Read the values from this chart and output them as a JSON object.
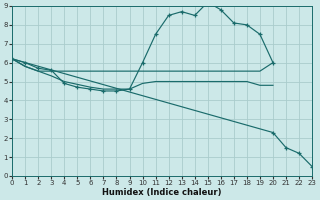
{
  "xlabel": "Humidex (Indice chaleur)",
  "bg_color": "#cce8e8",
  "grid_color": "#aacccc",
  "line_color": "#1a6b6b",
  "xlim": [
    0,
    23
  ],
  "ylim": [
    0,
    9
  ],
  "xticks": [
    0,
    1,
    2,
    3,
    4,
    5,
    6,
    7,
    8,
    9,
    10,
    11,
    12,
    13,
    14,
    15,
    16,
    17,
    18,
    19,
    20,
    21,
    22,
    23
  ],
  "yticks": [
    0,
    1,
    2,
    3,
    4,
    5,
    6,
    7,
    8,
    9
  ],
  "curves": [
    {
      "x": [
        0,
        1,
        2,
        3,
        4,
        5,
        6,
        7,
        8,
        9,
        10,
        11,
        12,
        13,
        14,
        15,
        16,
        17,
        18,
        19,
        20
      ],
      "y": [
        6.2,
        6.0,
        5.7,
        5.6,
        4.9,
        4.7,
        4.6,
        4.5,
        4.5,
        4.6,
        6.0,
        7.5,
        8.5,
        8.7,
        8.5,
        9.2,
        8.8,
        8.1,
        8.0,
        7.5,
        6.0
      ],
      "marker": true
    },
    {
      "x": [
        0,
        1,
        2,
        3,
        4,
        5,
        6,
        7,
        8,
        9,
        10,
        11,
        12,
        13,
        14,
        15,
        16,
        17,
        18,
        19,
        20
      ],
      "y": [
        6.2,
        5.8,
        5.55,
        5.55,
        5.55,
        5.55,
        5.55,
        5.55,
        5.55,
        5.55,
        5.55,
        5.55,
        5.55,
        5.55,
        5.55,
        5.55,
        5.55,
        5.55,
        5.55,
        5.55,
        6.0
      ],
      "marker": false
    },
    {
      "x": [
        0,
        1,
        2,
        3,
        4,
        5,
        6,
        7,
        8,
        9,
        10,
        11,
        12,
        13,
        14,
        15,
        16,
        17,
        18,
        19,
        20
      ],
      "y": [
        6.2,
        5.8,
        5.55,
        5.3,
        5.0,
        4.85,
        4.7,
        4.6,
        4.6,
        4.6,
        4.9,
        5.0,
        5.0,
        5.0,
        5.0,
        5.0,
        5.0,
        5.0,
        5.0,
        4.8,
        4.8
      ],
      "marker": false
    },
    {
      "x": [
        0,
        20,
        21,
        22,
        23
      ],
      "y": [
        6.2,
        2.3,
        1.5,
        1.2,
        0.5
      ],
      "marker": true
    }
  ]
}
